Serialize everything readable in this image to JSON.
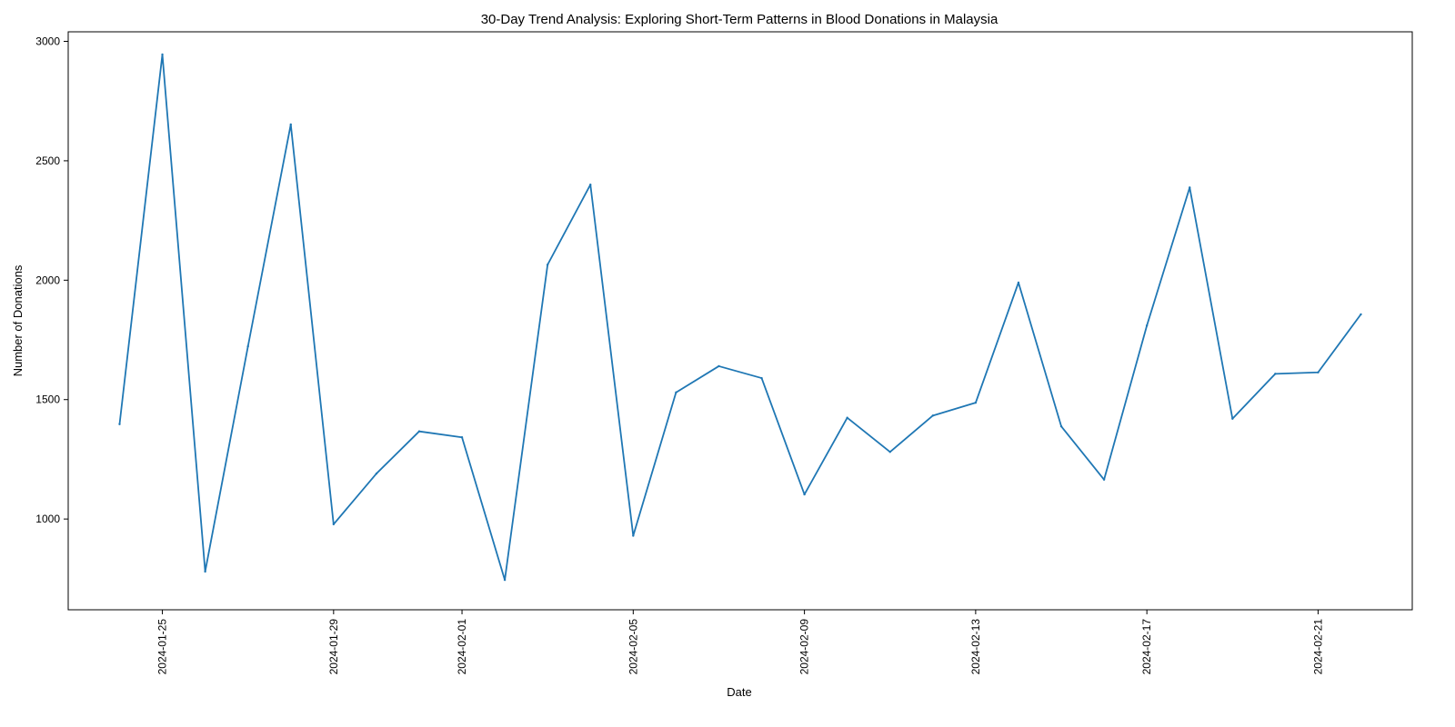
{
  "chart_data": {
    "type": "line",
    "title": "30-Day Trend Analysis: Exploring Short-Term Patterns in Blood Donations in Malaysia",
    "xlabel": "Date",
    "ylabel": "Number of Donations",
    "x_type": "date",
    "x": [
      "2024-01-24",
      "2024-01-25",
      "2024-01-26",
      "2024-01-27",
      "2024-01-28",
      "2024-01-29",
      "2024-01-30",
      "2024-01-31",
      "2024-02-01",
      "2024-02-02",
      "2024-02-03",
      "2024-02-04",
      "2024-02-05",
      "2024-02-06",
      "2024-02-07",
      "2024-02-08",
      "2024-02-09",
      "2024-02-10",
      "2024-02-11",
      "2024-02-12",
      "2024-02-13",
      "2024-02-14",
      "2024-02-15",
      "2024-02-16",
      "2024-02-17",
      "2024-02-18",
      "2024-02-19",
      "2024-02-20",
      "2024-02-21",
      "2024-02-22"
    ],
    "series": [
      {
        "values": [
          1397,
          2945,
          780,
          1723,
          2652,
          978,
          1190,
          1367,
          1342,
          745,
          2065,
          2400,
          930,
          1530,
          1640,
          1590,
          1103,
          1424,
          1281,
          1433,
          1487,
          1990,
          1388,
          1165,
          1810,
          2388,
          1420,
          1608,
          1614,
          1857
        ],
        "color": "#1f77b4"
      }
    ],
    "xticks": [
      "2024-01-25",
      "2024-01-29",
      "2024-02-01",
      "2024-02-05",
      "2024-02-09",
      "2024-02-13",
      "2024-02-17",
      "2024-02-21"
    ],
    "yticks": [
      1000,
      1500,
      2000,
      2500,
      3000
    ],
    "ylim": [
      620,
      3040
    ],
    "xlim": [
      "2024-01-22T19:12",
      "2024-02-23T04:48"
    ],
    "grid": false,
    "legend": "none"
  }
}
